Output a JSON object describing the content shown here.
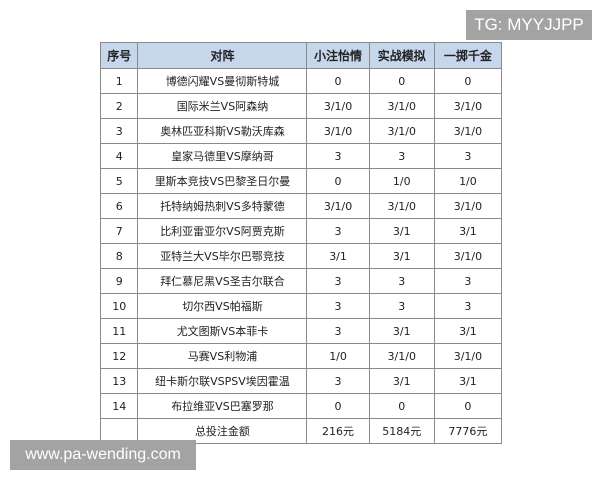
{
  "watermark_top": "TG: MYYJJPP",
  "watermark_bottom": "www.pa-wending.com",
  "header": [
    "序号",
    "对阵",
    "小注怡情",
    "实战模拟",
    "一掷千金"
  ],
  "rows": [
    [
      "1",
      "博德闪耀VS曼彻斯特城",
      "0",
      "0",
      "0"
    ],
    [
      "2",
      "国际米兰VS阿森纳",
      "3/1/0",
      "3/1/0",
      "3/1/0"
    ],
    [
      "3",
      "奥林匹亚科斯VS勒沃库森",
      "3/1/0",
      "3/1/0",
      "3/1/0"
    ],
    [
      "4",
      "皇家马德里VS摩纳哥",
      "3",
      "3",
      "3"
    ],
    [
      "5",
      "里斯本竞技VS巴黎圣日尔曼",
      "0",
      "1/0",
      "1/0"
    ],
    [
      "6",
      "托特纳姆热刺VS多特蒙德",
      "3/1/0",
      "3/1/0",
      "3/1/0"
    ],
    [
      "7",
      "比利亚雷亚尔VS阿贾克斯",
      "3",
      "3/1",
      "3/1"
    ],
    [
      "8",
      "亚特兰大VS毕尔巴鄂竞技",
      "3/1",
      "3/1",
      "3/1/0"
    ],
    [
      "9",
      "拜仁慕尼黑VS圣吉尔联合",
      "3",
      "3",
      "3"
    ],
    [
      "10",
      "切尔西VS帕福斯",
      "3",
      "3",
      "3"
    ],
    [
      "11",
      "尤文图斯VS本菲卡",
      "3",
      "3/1",
      "3/1"
    ],
    [
      "12",
      "马赛VS利物浦",
      "1/0",
      "3/1/0",
      "3/1/0"
    ],
    [
      "13",
      "纽卡斯尔联VSPSV埃因霍温",
      "3",
      "3/1",
      "3/1"
    ],
    [
      "14",
      "布拉维亚VS巴塞罗那",
      "0",
      "0",
      "0"
    ]
  ],
  "total": [
    "",
    "总投注金额",
    "216元",
    "5184元",
    "7776元"
  ],
  "colors": {
    "header_bg": "#c6d7ec",
    "watermark_bg": "#a3a3a3"
  }
}
